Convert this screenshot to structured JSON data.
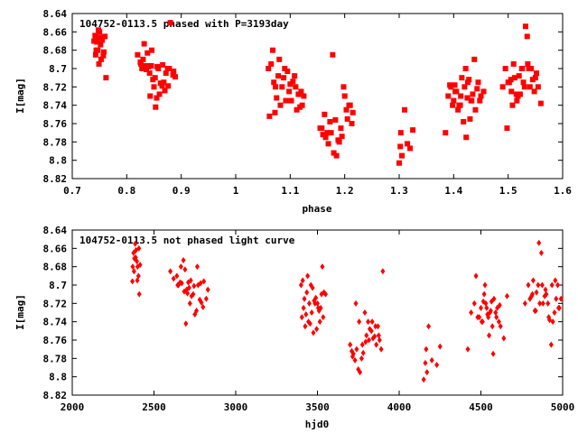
{
  "chart_data": [
    {
      "type": "scatter",
      "title": "104752-0113.5 phased with P=3193day",
      "xlabel": "phase",
      "ylabel": "I[mag]",
      "xlim": [
        0.7,
        1.6
      ],
      "ylim": [
        8.64,
        8.82
      ],
      "y_inverted": true,
      "xticks": [
        0.7,
        0.8,
        0.9,
        1,
        1.1,
        1.2,
        1.3,
        1.4,
        1.5,
        1.6
      ],
      "xtick_labels": [
        "0.7",
        "0.8",
        "0.9",
        "1",
        "1.1",
        "1.2",
        "1.3",
        "1.4",
        "1.5",
        "1.6"
      ],
      "yticks": [
        8.64,
        8.66,
        8.68,
        8.7,
        8.72,
        8.74,
        8.76,
        8.78,
        8.8,
        8.82
      ],
      "ytick_labels": [
        "8.64",
        "8.66",
        "8.68",
        "8.7",
        "8.72",
        "8.74",
        "8.76",
        "8.78",
        "8.8",
        "8.82"
      ],
      "marker": "square",
      "color": "#ff0000",
      "grid": false,
      "series": [
        {
          "x": [
            0.74,
            0.742,
            0.745,
            0.748,
            0.75,
            0.752,
            0.755,
            0.747,
            0.743,
            0.749,
            0.753,
            0.757,
            0.76,
            0.744,
            0.751,
            0.746,
            0.758,
            0.762,
            0.82,
            0.825,
            0.83,
            0.828,
            0.835,
            0.84,
            0.832,
            0.838,
            0.842,
            0.845,
            0.85,
            0.848,
            0.852,
            0.855,
            0.86,
            0.858,
            0.862,
            0.865,
            0.87,
            0.868,
            0.872,
            0.875,
            0.878,
            0.88,
            0.885,
            0.889,
            0.826,
            0.836,
            0.846,
            0.856,
            0.866,
            0.876,
            0.886,
            0.843,
            0.853,
            1.06,
            1.065,
            1.07,
            1.075,
            1.08,
            1.085,
            1.09,
            1.095,
            1.1,
            1.105,
            1.11,
            1.115,
            1.12,
            1.068,
            1.078,
            1.088,
            1.098,
            1.108,
            1.118,
            1.062,
            1.072,
            1.082,
            1.092,
            1.102,
            1.112,
            1.122,
            1.125,
            1.073,
            1.155,
            1.16,
            1.165,
            1.17,
            1.175,
            1.18,
            1.185,
            1.19,
            1.195,
            1.2,
            1.205,
            1.21,
            1.215,
            1.163,
            1.173,
            1.183,
            1.193,
            1.203,
            1.213,
            1.168,
            1.178,
            1.188,
            1.198,
            1.208,
            1.158,
            1.3,
            1.302,
            1.305,
            1.31,
            1.315,
            1.32,
            1.325,
            1.303,
            1.385,
            1.39,
            1.395,
            1.4,
            1.405,
            1.41,
            1.415,
            1.42,
            1.425,
            1.43,
            1.435,
            1.44,
            1.445,
            1.45,
            1.455,
            1.398,
            1.408,
            1.418,
            1.428,
            1.438,
            1.448,
            1.393,
            1.403,
            1.413,
            1.423,
            1.433,
            1.443,
            1.412,
            1.422,
            1.432,
            1.402,
            1.426,
            1.49,
            1.495,
            1.5,
            1.505,
            1.51,
            1.515,
            1.52,
            1.525,
            1.53,
            1.535,
            1.54,
            1.545,
            1.55,
            1.555,
            1.56,
            1.498,
            1.508,
            1.518,
            1.528,
            1.538,
            1.548,
            1.502,
            1.512,
            1.522,
            1.532,
            1.542,
            1.552,
            1.516,
            1.526,
            1.536,
            1.506
          ],
          "y": [
            8.67,
            8.664,
            8.671,
            8.658,
            8.66,
            8.674,
            8.669,
            8.68,
            8.685,
            8.695,
            8.69,
            8.686,
            8.665,
            8.68,
            8.666,
            8.667,
            8.682,
            8.71,
            8.685,
            8.693,
            8.69,
            8.7,
            8.697,
            8.698,
            8.673,
            8.683,
            8.705,
            8.697,
            8.72,
            8.712,
            8.71,
            8.732,
            8.728,
            8.7,
            8.716,
            8.719,
            8.724,
            8.715,
            8.705,
            8.7,
            8.7,
            8.65,
            8.707,
            8.709,
            8.695,
            8.701,
            8.68,
            8.698,
            8.696,
            8.719,
            8.703,
            8.73,
            8.742,
            8.7,
            8.695,
            8.715,
            8.732,
            8.69,
            8.72,
            8.7,
            8.703,
            8.717,
            8.714,
            8.72,
            8.728,
            8.725,
            8.68,
            8.708,
            8.71,
            8.725,
            8.708,
            8.742,
            8.752,
            8.748,
            8.74,
            8.735,
            8.735,
            8.745,
            8.74,
            8.73,
            8.72,
            8.765,
            8.772,
            8.775,
            8.782,
            8.77,
            8.792,
            8.795,
            8.78,
            8.774,
            8.73,
            8.755,
            8.74,
            8.748,
            8.75,
            8.758,
            8.756,
            8.765,
            8.745,
            8.76,
            8.77,
            8.685,
            8.778,
            8.72,
            8.74,
            8.765,
            8.803,
            8.785,
            8.795,
            8.745,
            8.782,
            8.787,
            8.767,
            8.77,
            8.77,
            8.73,
            8.72,
            8.735,
            8.725,
            8.74,
            8.71,
            8.72,
            8.732,
            8.755,
            8.728,
            8.745,
            8.715,
            8.73,
            8.725,
            8.74,
            8.745,
            8.758,
            8.712,
            8.69,
            8.735,
            8.718,
            8.725,
            8.73,
            8.775,
            8.735,
            8.722,
            8.74,
            8.7,
            8.735,
            8.718,
            8.715,
            8.72,
            8.7,
            8.715,
            8.712,
            8.695,
            8.728,
            8.708,
            8.7,
            8.72,
            8.665,
            8.72,
            8.712,
            8.71,
            8.72,
            8.738,
            8.765,
            8.74,
            8.73,
            8.715,
            8.7,
            8.725,
            8.715,
            8.71,
            8.728,
            8.654,
            8.7,
            8.705,
            8.735,
            8.7,
            8.695,
            8.725
          ]
        }
      ]
    },
    {
      "type": "scatter",
      "title": "104752-0113.5 not phased light curve",
      "xlabel": "hjd0",
      "ylabel": "I[mag]",
      "xlim": [
        2000,
        5000
      ],
      "ylim": [
        8.64,
        8.82
      ],
      "y_inverted": true,
      "xticks": [
        2000,
        2500,
        3000,
        3500,
        4000,
        4500,
        5000
      ],
      "xtick_labels": [
        "2000",
        "2500",
        "3000",
        "3500",
        "4000",
        "4500",
        "5000"
      ],
      "yticks": [
        8.64,
        8.66,
        8.68,
        8.7,
        8.72,
        8.74,
        8.76,
        8.78,
        8.8,
        8.82
      ],
      "ytick_labels": [
        "8.64",
        "8.66",
        "8.68",
        "8.7",
        "8.72",
        "8.74",
        "8.76",
        "8.78",
        "8.8",
        "8.82"
      ],
      "marker": "diamond",
      "color": "#ff0000",
      "grid": false,
      "series": [
        {
          "x": [
            2370,
            2375,
            2380,
            2385,
            2390,
            2395,
            2400,
            2405,
            2410,
            2378,
            2388,
            2398,
            2368,
            2408,
            2415,
            2600,
            2620,
            2640,
            2650,
            2660,
            2670,
            2680,
            2690,
            2700,
            2710,
            2720,
            2730,
            2740,
            2750,
            2760,
            2770,
            2780,
            2790,
            2800,
            2820,
            2830,
            2645,
            2665,
            2685,
            2705,
            2725,
            2745,
            2765,
            2785,
            2805,
            2695,
            2715,
            3400,
            3410,
            3420,
            3430,
            3440,
            3450,
            3460,
            3470,
            3480,
            3490,
            3500,
            3510,
            3520,
            3530,
            3540,
            3550,
            3415,
            3435,
            3455,
            3475,
            3495,
            3515,
            3535,
            3405,
            3425,
            3445,
            3465,
            3485,
            3505,
            3525,
            3700,
            3710,
            3720,
            3730,
            3740,
            3750,
            3760,
            3770,
            3780,
            3790,
            3800,
            3810,
            3820,
            3830,
            3840,
            3850,
            3860,
            3870,
            3880,
            3890,
            3900,
            3715,
            3735,
            3755,
            3775,
            3795,
            3815,
            3835,
            3855,
            3875,
            4150,
            4160,
            4170,
            4180,
            4200,
            4230,
            4250,
            4165,
            4420,
            4440,
            4460,
            4480,
            4500,
            4510,
            4520,
            4530,
            4540,
            4550,
            4560,
            4570,
            4580,
            4590,
            4600,
            4610,
            4620,
            4640,
            4660,
            4470,
            4490,
            4515,
            4535,
            4555,
            4575,
            4595,
            4615,
            4505,
            4525,
            4545,
            4565,
            4770,
            4790,
            4800,
            4810,
            4820,
            4830,
            4840,
            4850,
            4860,
            4870,
            4880,
            4890,
            4900,
            4910,
            4920,
            4930,
            4940,
            4950,
            4960,
            4970,
            4980,
            4990,
            4815,
            4835,
            4855,
            4875,
            4895,
            4915,
            4935,
            4955,
            4975
          ],
          "y": [
            8.68,
            8.665,
            8.671,
            8.655,
            8.662,
            8.674,
            8.68,
            8.69,
            8.71,
            8.685,
            8.67,
            8.695,
            8.696,
            8.66,
            8.678,
            8.685,
            8.693,
            8.69,
            8.7,
            8.697,
            8.698,
            8.673,
            8.683,
            8.705,
            8.697,
            8.72,
            8.712,
            8.71,
            8.732,
            8.728,
            8.7,
            8.716,
            8.719,
            8.724,
            8.715,
            8.705,
            8.7,
            8.68,
            8.707,
            8.709,
            8.695,
            8.701,
            8.68,
            8.698,
            8.696,
            8.742,
            8.703,
            8.7,
            8.695,
            8.715,
            8.732,
            8.69,
            8.72,
            8.7,
            8.703,
            8.717,
            8.714,
            8.72,
            8.728,
            8.725,
            8.68,
            8.708,
            8.71,
            8.725,
            8.708,
            8.742,
            8.752,
            8.748,
            8.74,
            8.735,
            8.735,
            8.745,
            8.74,
            8.73,
            8.72,
            8.725,
            8.71,
            8.765,
            8.772,
            8.775,
            8.782,
            8.77,
            8.792,
            8.795,
            8.78,
            8.774,
            8.73,
            8.755,
            8.74,
            8.748,
            8.75,
            8.758,
            8.756,
            8.765,
            8.745,
            8.76,
            8.77,
            8.685,
            8.778,
            8.72,
            8.74,
            8.765,
            8.762,
            8.76,
            8.74,
            8.745,
            8.755,
            8.803,
            8.785,
            8.795,
            8.745,
            8.782,
            8.787,
            8.767,
            8.77,
            8.77,
            8.73,
            8.72,
            8.735,
            8.725,
            8.74,
            8.71,
            8.72,
            8.732,
            8.755,
            8.728,
            8.745,
            8.715,
            8.73,
            8.725,
            8.74,
            8.745,
            8.758,
            8.712,
            8.69,
            8.735,
            8.718,
            8.725,
            8.73,
            8.775,
            8.735,
            8.722,
            8.74,
            8.7,
            8.735,
            8.718,
            8.72,
            8.7,
            8.715,
            8.712,
            8.695,
            8.728,
            8.708,
            8.7,
            8.72,
            8.665,
            8.72,
            8.712,
            8.71,
            8.72,
            8.738,
            8.765,
            8.74,
            8.73,
            8.715,
            8.7,
            8.725,
            8.715,
            8.71,
            8.728,
            8.654,
            8.7,
            8.705,
            8.735,
            8.7,
            8.695,
            8.725
          ]
        }
      ]
    }
  ]
}
